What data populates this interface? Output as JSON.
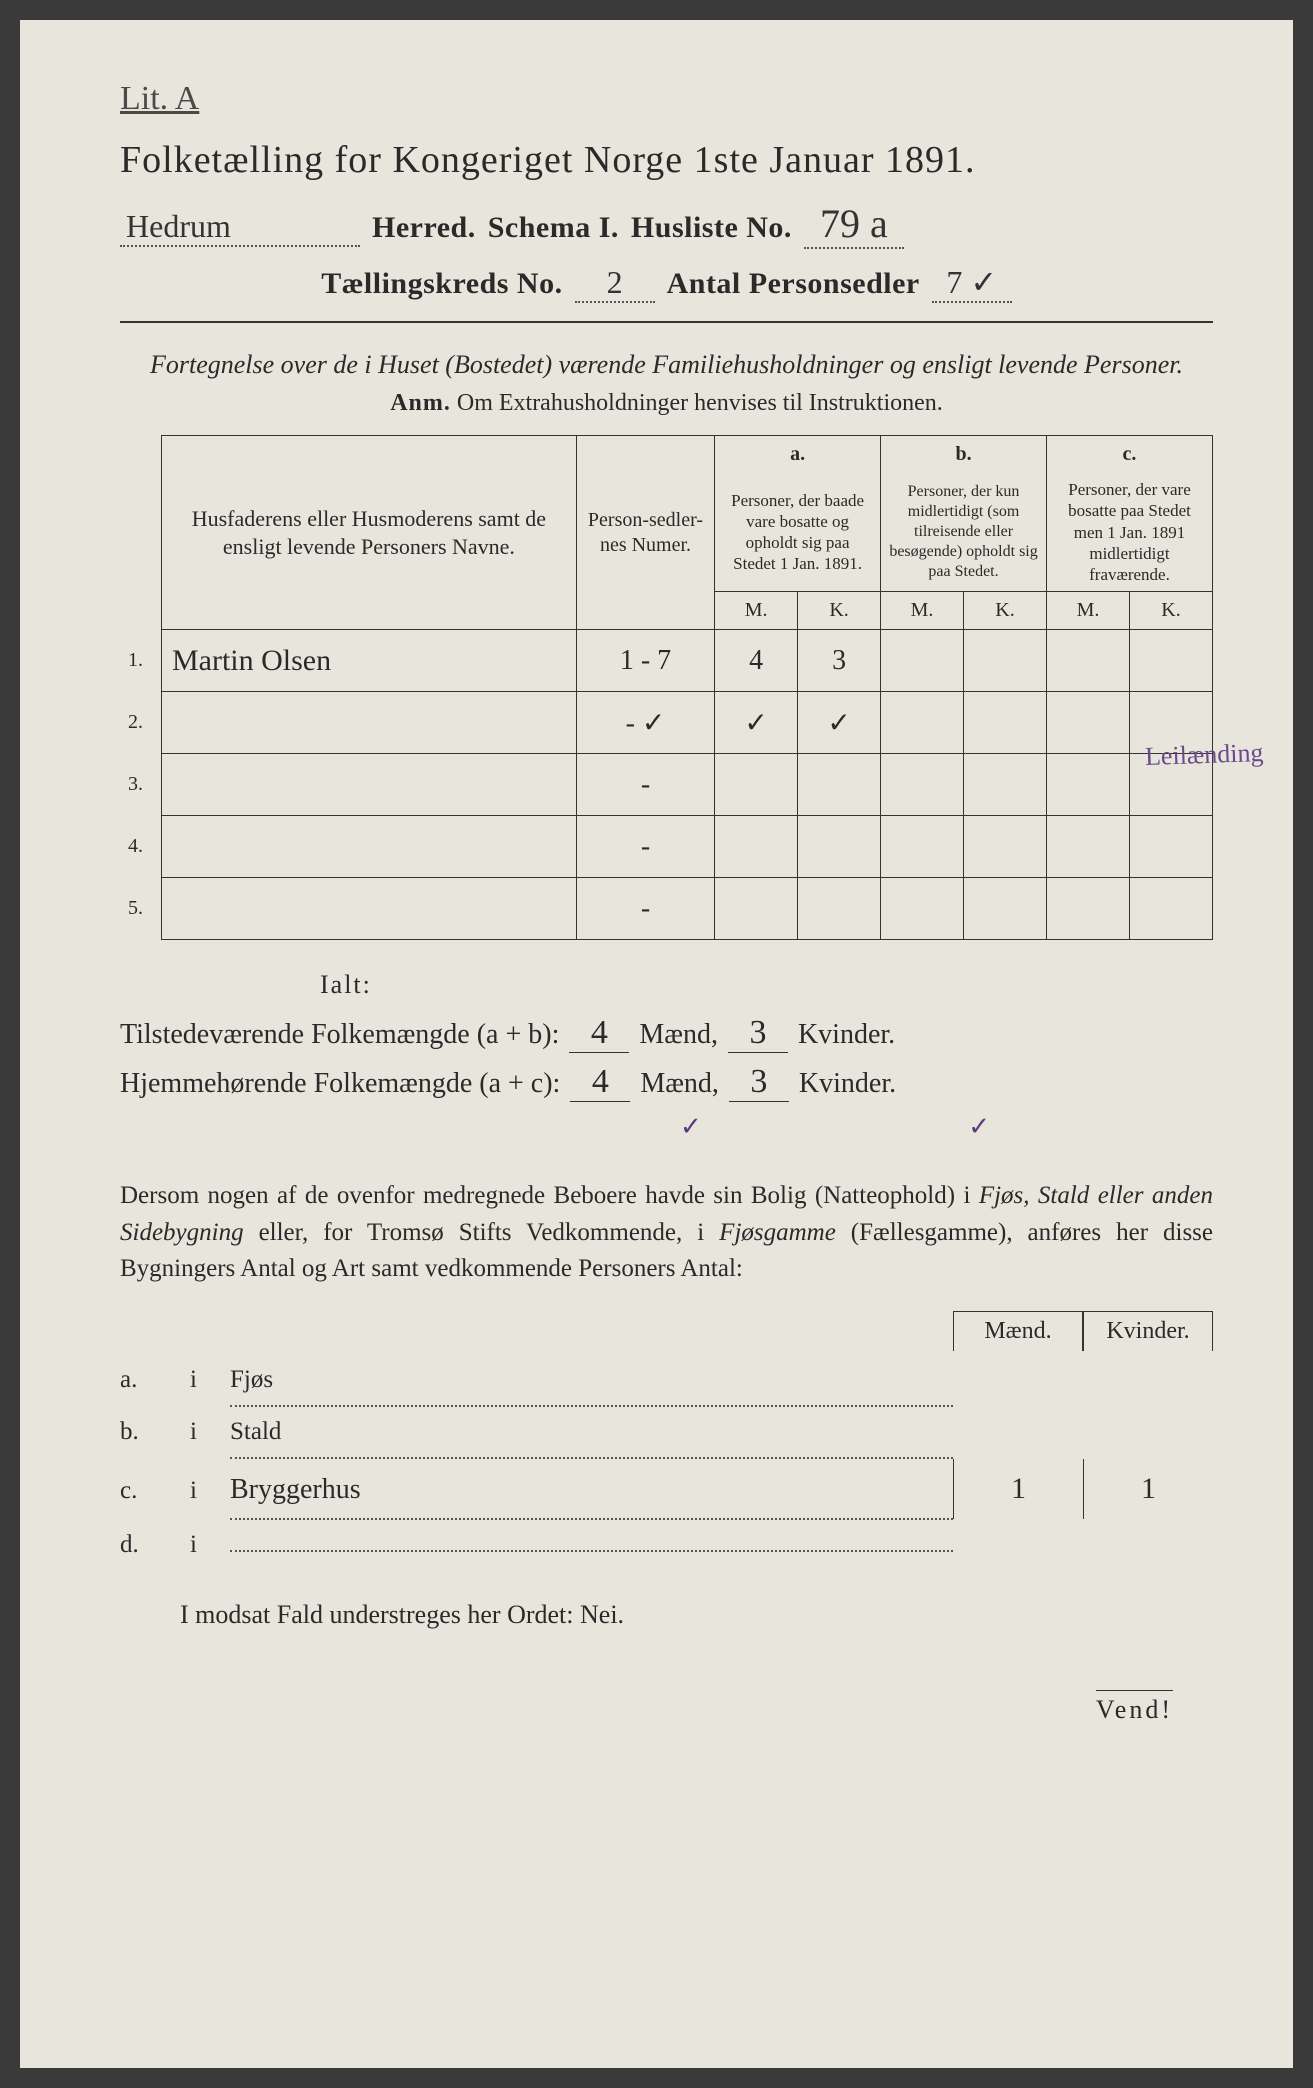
{
  "annotation_top": "Lit. A",
  "title": "Folketælling for Kongeriget Norge 1ste Januar 1891.",
  "header": {
    "herred_value": "Hedrum",
    "herred_label": "Herred.",
    "schema_label": "Schema I.",
    "husliste_label": "Husliste No.",
    "husliste_value": "79 a",
    "kreds_label": "Tællingskreds No.",
    "kreds_value": "2",
    "antal_label": "Antal Personsedler",
    "antal_value": "7 ✓"
  },
  "intro": "Fortegnelse over de i Huset (Bostedet) værende Familiehusholdninger og ensligt levende Personer.",
  "anm_label": "Anm.",
  "anm_text": "Om Extrahusholdninger henvises til Instruktionen.",
  "table": {
    "head_names": "Husfaderens eller Husmoderens samt de ensligt levende Personers Navne.",
    "head_numer": "Person-sedler-nes Numer.",
    "col_a_tag": "a.",
    "col_a": "Personer, der baade vare bosatte og opholdt sig paa Stedet 1 Jan. 1891.",
    "col_b_tag": "b.",
    "col_b": "Personer, der kun midlertidigt (som tilreisende eller besøgende) opholdt sig paa Stedet.",
    "col_c_tag": "c.",
    "col_c": "Personer, der vare bosatte paa Stedet men 1 Jan. 1891 midlertidigt fraværende.",
    "m": "M.",
    "k": "K.",
    "rows": [
      {
        "idx": "1.",
        "name": "Martin Olsen",
        "numer": "1 - 7",
        "a_m": "4",
        "a_k": "3",
        "b_m": "",
        "b_k": "",
        "c_m": "",
        "c_k": ""
      },
      {
        "idx": "2.",
        "name": "",
        "numer": "- ✓",
        "a_m": "✓",
        "a_k": "✓",
        "b_m": "",
        "b_k": "",
        "c_m": "",
        "c_k": ""
      },
      {
        "idx": "3.",
        "name": "",
        "numer": "-",
        "a_m": "",
        "a_k": "",
        "b_m": "",
        "b_k": "",
        "c_m": "",
        "c_k": ""
      },
      {
        "idx": "4.",
        "name": "",
        "numer": "-",
        "a_m": "",
        "a_k": "",
        "b_m": "",
        "b_k": "",
        "c_m": "",
        "c_k": ""
      },
      {
        "idx": "5.",
        "name": "",
        "numer": "-",
        "a_m": "",
        "a_k": "",
        "b_m": "",
        "b_k": "",
        "c_m": "",
        "c_k": ""
      }
    ]
  },
  "margin_note": "Leilænding",
  "ialt": "Ialt:",
  "totals": {
    "line1_label": "Tilstedeværende Folkemængde (a + b):",
    "line1_m": "4",
    "line1_k": "3",
    "line2_label": "Hjemmehørende Folkemængde (a + c):",
    "line2_m": "4",
    "line2_k": "3",
    "maend": "Mænd,",
    "kvinder": "Kvinder.",
    "checks": "✓ ✓"
  },
  "paragraph": {
    "p1": "Dersom nogen af de ovenfor medregnede Beboere havde sin Bolig (Natteophold) i ",
    "i1": "Fjøs, Stald eller anden Sidebygning",
    "p2": " eller, for Tromsø Stifts Vedkommende, i ",
    "i2": "Fjøsgamme",
    "p3": " (Fællesgamme), anføres her disse Bygningers Antal og Art samt vedkommende Personers Antal:"
  },
  "side_table": {
    "maend": "Mænd.",
    "kvinder": "Kvinder.",
    "rows": [
      {
        "lbl": "a.",
        "txt": "Fjøs",
        "hand": false,
        "m": "",
        "k": ""
      },
      {
        "lbl": "b.",
        "txt": "Stald",
        "hand": false,
        "m": "",
        "k": ""
      },
      {
        "lbl": "c.",
        "txt": "Bryggerhus",
        "hand": true,
        "m": "1",
        "k": "1"
      },
      {
        "lbl": "d.",
        "txt": "",
        "hand": false,
        "m": "",
        "k": ""
      }
    ],
    "i": "i"
  },
  "closing": "I modsat Fald understreges her Ordet: Nei.",
  "vend": "Vend!",
  "colors": {
    "paper": "#e8e6dc",
    "ink": "#2a2a2a",
    "pencil": "#5a3a7a"
  }
}
